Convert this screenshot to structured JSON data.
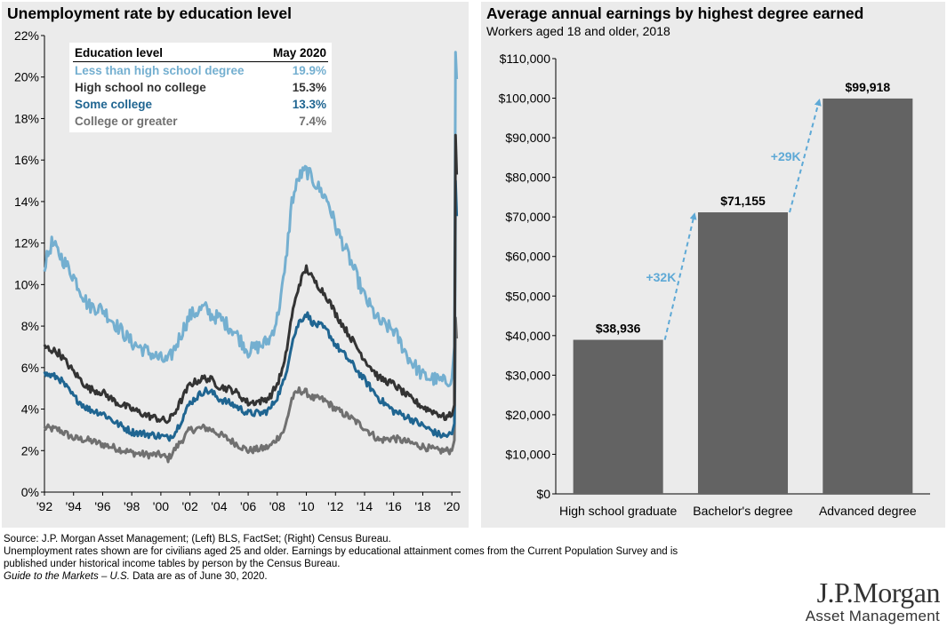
{
  "left": {
    "title": "Unemployment rate by education level",
    "legend": {
      "header_label": "Education level",
      "header_value": "May 2020",
      "rows": [
        {
          "label": "Less than high school degree",
          "value": "19.9%",
          "color": "#74afd0"
        },
        {
          "label": "High school no college",
          "value": "15.3%",
          "color": "#333333"
        },
        {
          "label": "Some college",
          "value": "13.3%",
          "color": "#1f6591"
        },
        {
          "label": "College or greater",
          "value": "7.4%",
          "color": "#707070"
        }
      ]
    }
  },
  "right": {
    "title": "Average annual earnings by highest degree earned",
    "subtitle": "Workers aged 18 and older, 2018"
  },
  "footnotes": {
    "source": "Source: J.P. Morgan Asset Management; (Left) BLS, FactSet; (Right) Census Bureau.",
    "note1": "Unemployment rates shown are for civilians aged 25 and older. Earnings by educational attainment comes from the Current Population Survey and is",
    "note2": "published under historical income tables by person by the Census Bureau.",
    "guide_italic": "Guide to the Markets – U.S.",
    "guide_rest": " Data are as of June 30, 2020."
  },
  "logo": {
    "brand": "J.P.Morgan",
    "sub": "Asset Management"
  },
  "chart_data": [
    {
      "type": "line",
      "title": "Unemployment rate by education level",
      "xlim": [
        1992,
        2020.6
      ],
      "ylim": [
        0,
        22
      ],
      "y_ticks": [
        "0%",
        "2%",
        "4%",
        "6%",
        "8%",
        "10%",
        "12%",
        "14%",
        "16%",
        "18%",
        "20%",
        "22%"
      ],
      "y_tick_values": [
        0,
        2,
        4,
        6,
        8,
        10,
        12,
        14,
        16,
        18,
        20,
        22
      ],
      "x_ticks": [
        "'92",
        "'94",
        "'96",
        "'98",
        "'00",
        "'02",
        "'04",
        "'06",
        "'08",
        "'10",
        "'12",
        "'14",
        "'16",
        "'18",
        "'20"
      ],
      "x_tick_values": [
        1992,
        1994,
        1996,
        1998,
        2000,
        2002,
        2004,
        2006,
        2008,
        2010,
        2012,
        2014,
        2016,
        2018,
        2020
      ],
      "grid": false,
      "legend": "top-left",
      "series": [
        {
          "name": "Less than high school degree",
          "color": "#74afd0",
          "x": [
            1992,
            1992.5,
            1993,
            1994,
            1995,
            1996,
            1997,
            1998,
            1999,
            2000,
            2000.5,
            2001,
            2001.5,
            2002,
            2003,
            2003.5,
            2004,
            2005,
            2006,
            2007,
            2007.5,
            2008,
            2008.5,
            2009,
            2009.5,
            2010,
            2010.5,
            2011,
            2011.5,
            2012,
            2013,
            2014,
            2015,
            2016,
            2017,
            2018,
            2019,
            2019.5,
            2020,
            2020.17,
            2020.25,
            2020.33
          ],
          "y": [
            10.9,
            12.0,
            11.5,
            10.4,
            9.0,
            8.8,
            8.0,
            7.2,
            6.8,
            6.4,
            6.3,
            7.0,
            7.8,
            8.5,
            8.9,
            8.5,
            8.4,
            7.8,
            6.8,
            7.1,
            7.4,
            8.4,
            10.5,
            14.0,
            15.2,
            15.5,
            15.0,
            14.5,
            14.0,
            12.8,
            11.2,
            9.4,
            8.2,
            7.8,
            6.5,
            5.6,
            5.4,
            5.3,
            5.5,
            7.0,
            21.2,
            19.9
          ]
        },
        {
          "name": "High school no college",
          "color": "#333333",
          "x": [
            1992,
            1993,
            1994,
            1995,
            1996,
            1997,
            1998,
            1999,
            2000,
            2000.5,
            2001,
            2002,
            2003,
            2003.5,
            2004,
            2005,
            2006,
            2007,
            2007.5,
            2008,
            2008.5,
            2009,
            2009.5,
            2010,
            2010.5,
            2011,
            2011.5,
            2012,
            2013,
            2014,
            2015,
            2016,
            2017,
            2018,
            2019,
            2019.5,
            2020,
            2020.17,
            2020.25,
            2020.33
          ],
          "y": [
            7.0,
            6.7,
            5.8,
            5.0,
            4.8,
            4.3,
            4.0,
            3.7,
            3.5,
            3.4,
            3.9,
            5.2,
            5.5,
            5.4,
            5.1,
            4.9,
            4.3,
            4.4,
            4.6,
            5.2,
            6.2,
            8.5,
            10.0,
            10.8,
            10.2,
            9.8,
            9.3,
            8.6,
            7.5,
            6.4,
            5.5,
            5.2,
            4.6,
            4.1,
            3.8,
            3.6,
            3.7,
            4.2,
            17.2,
            15.3
          ]
        },
        {
          "name": "Some college",
          "color": "#1f6591",
          "x": [
            1992,
            1993,
            1994,
            1995,
            1996,
            1997,
            1998,
            1999,
            2000,
            2000.5,
            2001,
            2002,
            2003,
            2003.5,
            2004,
            2005,
            2006,
            2007,
            2007.5,
            2008,
            2008.5,
            2009,
            2009.5,
            2010,
            2010.5,
            2011,
            2011.5,
            2012,
            2013,
            2014,
            2015,
            2016,
            2017,
            2018,
            2019,
            2019.5,
            2020,
            2020.17,
            2020.25,
            2020.33
          ],
          "y": [
            5.7,
            5.5,
            4.6,
            4.0,
            3.8,
            3.3,
            2.9,
            2.8,
            2.7,
            2.6,
            2.9,
            4.3,
            4.9,
            4.8,
            4.5,
            4.2,
            3.8,
            3.8,
            4.0,
            4.6,
            5.4,
            7.2,
            8.2,
            8.6,
            8.1,
            8.0,
            7.7,
            7.1,
            6.3,
            5.4,
            4.5,
            3.9,
            3.6,
            3.2,
            2.8,
            2.7,
            2.8,
            3.3,
            15.0,
            13.3
          ]
        },
        {
          "name": "College or greater",
          "color": "#707070",
          "x": [
            1992,
            1993,
            1994,
            1995,
            1996,
            1997,
            1998,
            1999,
            2000,
            2000.5,
            2001,
            2002,
            2003,
            2003.5,
            2004,
            2005,
            2006,
            2007,
            2007.5,
            2008,
            2008.5,
            2009,
            2009.5,
            2010,
            2010.5,
            2011,
            2011.5,
            2012,
            2013,
            2014,
            2015,
            2016,
            2017,
            2018,
            2019,
            2019.5,
            2020,
            2020.17,
            2020.25,
            2020.33
          ],
          "y": [
            3.1,
            3.0,
            2.6,
            2.5,
            2.3,
            2.1,
            1.9,
            1.8,
            1.8,
            1.6,
            2.1,
            3.0,
            3.1,
            3.0,
            2.8,
            2.4,
            2.0,
            2.1,
            2.2,
            2.6,
            3.0,
            4.5,
            4.9,
            4.8,
            4.5,
            4.5,
            4.3,
            4.0,
            3.6,
            3.1,
            2.5,
            2.6,
            2.4,
            2.2,
            2.0,
            2.0,
            2.0,
            2.5,
            8.4,
            7.4
          ]
        }
      ]
    },
    {
      "type": "bar",
      "title": "Average annual earnings by highest degree earned",
      "subtitle": "Workers aged 18 and older, 2018",
      "categories": [
        "High school graduate",
        "Bachelor's degree",
        "Advanced degree"
      ],
      "values": [
        38936,
        71155,
        99918
      ],
      "data_labels": [
        "$38,936",
        "$71,155",
        "$99,918"
      ],
      "bar_color": "#636363",
      "ylim": [
        0,
        110000
      ],
      "y_ticks": [
        "$0",
        "$10,000",
        "$20,000",
        "$30,000",
        "$40,000",
        "$50,000",
        "$60,000",
        "$70,000",
        "$80,000",
        "$90,000",
        "$100,000",
        "$110,000"
      ],
      "y_tick_values": [
        0,
        10000,
        20000,
        30000,
        40000,
        50000,
        60000,
        70000,
        80000,
        90000,
        100000,
        110000
      ],
      "annotations": [
        {
          "text": "+32K",
          "from": 0,
          "to": 1,
          "color": "#5ea9d6"
        },
        {
          "text": "+29K",
          "from": 1,
          "to": 2,
          "color": "#5ea9d6"
        }
      ],
      "grid": false
    }
  ]
}
